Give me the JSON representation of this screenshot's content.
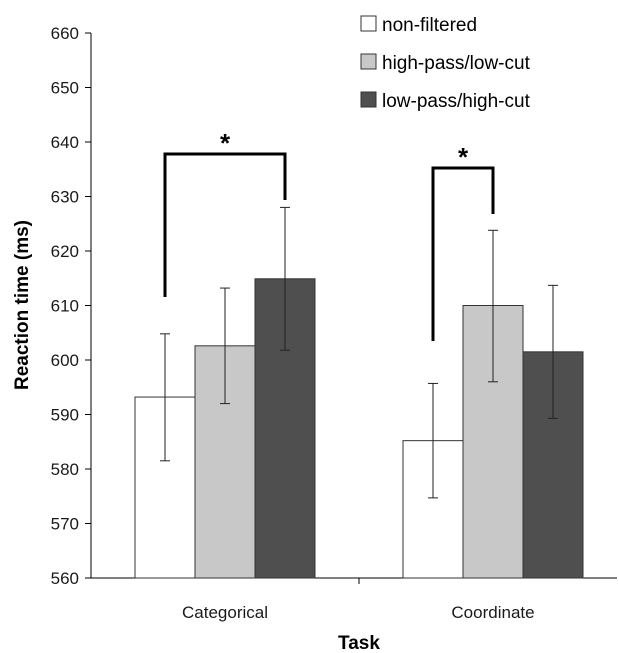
{
  "chart_data": {
    "type": "bar",
    "title": "",
    "xlabel": "Task",
    "ylabel": "Reaction time (ms)",
    "ylim": [
      560,
      660
    ],
    "yticks": [
      560,
      570,
      580,
      590,
      600,
      610,
      620,
      630,
      640,
      650,
      660
    ],
    "categories": [
      "Categorical",
      "Coordinate"
    ],
    "series": [
      {
        "name": "non-filtered",
        "color": "#ffffff",
        "values": [
          593.2,
          585.2
        ],
        "error_low": [
          581.5,
          574.7
        ],
        "error_high": [
          604.8,
          595.7
        ]
      },
      {
        "name": "high-pass/low-cut",
        "color": "#c8c8c8",
        "values": [
          602.6,
          610.0
        ],
        "error_low": [
          592.0,
          596.0
        ],
        "error_high": [
          613.2,
          623.8
        ]
      },
      {
        "name": "low-pass/high-cut",
        "color": "#4f4f4f",
        "values": [
          614.9,
          601.5
        ],
        "error_low": [
          601.8,
          589.3
        ],
        "error_high": [
          628.0,
          613.7
        ]
      }
    ],
    "significance": [
      {
        "category": "Categorical",
        "series_from": "non-filtered",
        "series_to": "low-pass/high-cut",
        "label": "*"
      },
      {
        "category": "Coordinate",
        "series_from": "non-filtered",
        "series_to": "high-pass/low-cut",
        "label": "*"
      }
    ],
    "legend_position": "top-right",
    "grid": false
  }
}
